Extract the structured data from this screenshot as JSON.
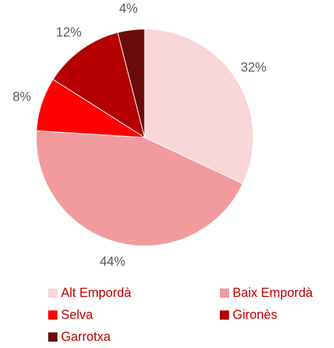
{
  "chart_data": {
    "type": "pie",
    "categories": [
      "Alt Empordà",
      "Baix Empordà",
      "Selva",
      "Gironès",
      "Garrotxa"
    ],
    "values": [
      32,
      44,
      8,
      12,
      4
    ],
    "value_labels": [
      "32%",
      "44%",
      "8%",
      "12%",
      "4%"
    ],
    "colors": [
      "#f9d6d7",
      "#f29b9e",
      "#ff0000",
      "#b40000",
      "#6a0c0c"
    ],
    "legend": "bottom"
  }
}
